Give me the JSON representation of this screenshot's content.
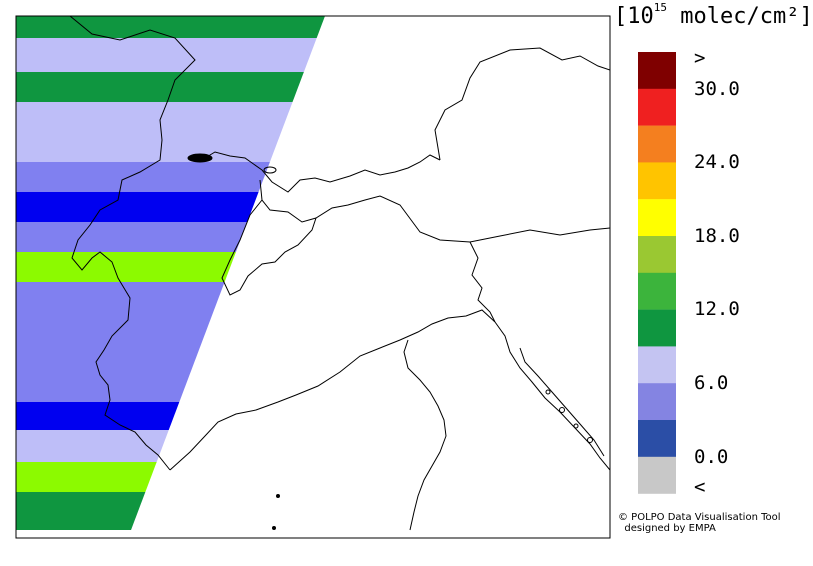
{
  "legend": {
    "unit_prefix": "[10",
    "unit_exponent": "15",
    "unit_suffix": " molec/cm²]",
    "labels": [
      ">",
      "30.0",
      "24.0",
      "18.0",
      "12.0",
      "6.0",
      "0.0",
      "<"
    ],
    "colors": [
      "#7f0000",
      "#ef2020",
      "#f47f1f",
      "#ffc400",
      "#ffff00",
      "#9ac832",
      "#3cb43c",
      "#0f9640",
      "#c4c4f2",
      "#8484e2",
      "#2b4ea6",
      "#c8c8c8"
    ]
  },
  "swaths": {
    "colors": {
      "darkred": "#7f0000",
      "orange": "#f48c00",
      "green": "#0f9640",
      "lightgreen": "#8cfa00",
      "lavender": "#bebef8",
      "periwinkle": "#8080f0",
      "blue": "#0000f0"
    }
  },
  "credits": {
    "line1": "© POLPO Data Visualisation Tool",
    "line2": "designed by EMPA"
  }
}
